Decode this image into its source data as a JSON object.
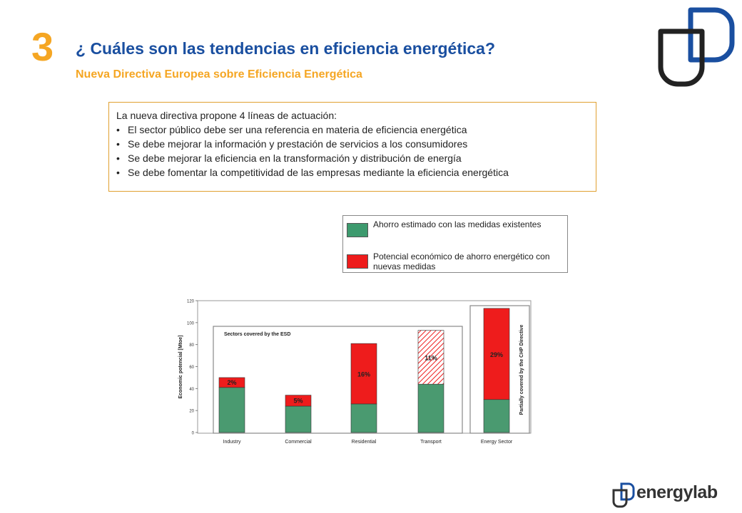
{
  "header": {
    "section_number": "3",
    "title": "¿ Cuáles son las tendencias en eficiencia energética?",
    "subtitle": "Nueva Directiva Europea sobre Eficiencia Energética"
  },
  "textbox": {
    "intro": "La nueva directiva propone 4 líneas de actuación:",
    "bullet": "•",
    "items": [
      "El sector público debe ser una referencia en materia de eficiencia energética",
      "Se debe mejorar la información y prestación de servicios a los consumidores",
      "Se debe mejorar la eficiencia en la transformación y distribución de energía",
      "Se debe fomentar la competitividad de las empresas mediante la eficiencia energética"
    ]
  },
  "legend": {
    "items": [
      {
        "label": "Ahorro estimado con las medidas existentes",
        "color": "#3d9a6e"
      },
      {
        "label": "Potencial económico de ahorro energético con nuevas medidas",
        "color": "#ee1c1c"
      }
    ]
  },
  "chart_data": {
    "type": "bar",
    "stacked": true,
    "categories": [
      "Industry",
      "Commercial",
      "Residential",
      "Transport",
      "Energy Sector"
    ],
    "series": [
      {
        "values": [
          41,
          24,
          26,
          44,
          30
        ],
        "color": "#4a9a70"
      },
      {
        "values": [
          9,
          10,
          55,
          49,
          83
        ],
        "color": "#ee1c1c",
        "hatched": [
          false,
          false,
          false,
          true,
          false
        ]
      }
    ],
    "data_labels": [
      "2%",
      "5%",
      "16%",
      "11%",
      "29%"
    ],
    "ylabel": "Economic potencial [Mtoe]",
    "ylim": [
      0,
      120
    ],
    "yticks": [
      0,
      20,
      40,
      60,
      80,
      100,
      120
    ],
    "annotations": {
      "esd_box": "Sectors covered by the ESD",
      "chp_box": "Partially covered by the CHP Directive"
    },
    "grid": false
  },
  "footer": {
    "brand": "energylab"
  }
}
